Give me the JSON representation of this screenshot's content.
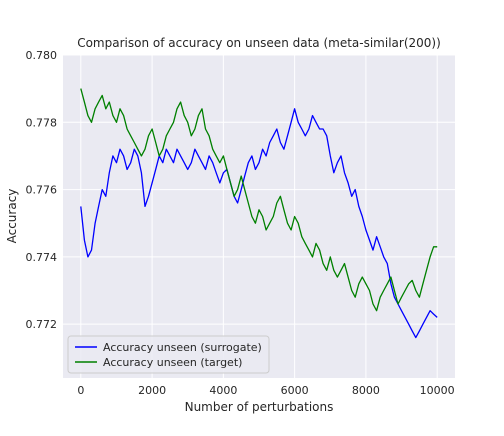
{
  "chart_data": {
    "type": "line",
    "title": "Comparison of accuracy on unseen data (meta-similar(200))",
    "xlabel": "Number of perturbations",
    "ylabel": "Accuracy",
    "xlim": [
      -500,
      10500
    ],
    "ylim": [
      0.7704,
      0.78
    ],
    "x_ticks": [
      0,
      2000,
      4000,
      6000,
      8000,
      10000
    ],
    "x_tick_labels": [
      "0",
      "2000",
      "4000",
      "6000",
      "8000",
      "10000"
    ],
    "y_ticks": [
      0.772,
      0.774,
      0.776,
      0.778,
      0.78
    ],
    "y_tick_labels": [
      "0.772",
      "0.774",
      "0.776",
      "0.778",
      "0.780"
    ],
    "grid": true,
    "legend_position": "lower-left",
    "series": [
      {
        "name": "Accuracy unseen (surrogate)",
        "color": "#0000ff",
        "x": [
          0,
          100,
          200,
          300,
          400,
          500,
          600,
          700,
          800,
          900,
          1000,
          1100,
          1200,
          1300,
          1400,
          1500,
          1600,
          1700,
          1800,
          1900,
          2000,
          2100,
          2200,
          2300,
          2400,
          2500,
          2600,
          2700,
          2800,
          2900,
          3000,
          3100,
          3200,
          3300,
          3400,
          3500,
          3600,
          3700,
          3800,
          3900,
          4000,
          4100,
          4200,
          4300,
          4400,
          4500,
          4600,
          4700,
          4800,
          4900,
          5000,
          5100,
          5200,
          5300,
          5400,
          5500,
          5600,
          5700,
          5800,
          5900,
          6000,
          6100,
          6200,
          6300,
          6400,
          6500,
          6600,
          6700,
          6800,
          6900,
          7000,
          7100,
          7200,
          7300,
          7400,
          7500,
          7600,
          7700,
          7800,
          7900,
          8000,
          8100,
          8200,
          8300,
          8400,
          8500,
          8600,
          8700,
          8800,
          8900,
          9000,
          9100,
          9200,
          9300,
          9400,
          9500,
          9600,
          9700,
          9800,
          9900,
          10000
        ],
        "y": [
          0.7755,
          0.7745,
          0.774,
          0.7742,
          0.775,
          0.7755,
          0.776,
          0.7758,
          0.7765,
          0.777,
          0.7768,
          0.7772,
          0.777,
          0.7766,
          0.7768,
          0.7772,
          0.777,
          0.7765,
          0.7755,
          0.7758,
          0.7762,
          0.7766,
          0.777,
          0.7768,
          0.7772,
          0.777,
          0.7768,
          0.7772,
          0.777,
          0.7768,
          0.7766,
          0.7768,
          0.7772,
          0.777,
          0.7768,
          0.7766,
          0.777,
          0.7768,
          0.7765,
          0.7762,
          0.7765,
          0.7766,
          0.7762,
          0.7758,
          0.7756,
          0.776,
          0.7764,
          0.7768,
          0.777,
          0.7766,
          0.7768,
          0.7772,
          0.777,
          0.7774,
          0.7776,
          0.7778,
          0.7774,
          0.7772,
          0.7776,
          0.778,
          0.7784,
          0.778,
          0.7778,
          0.7776,
          0.7778,
          0.7782,
          0.778,
          0.7778,
          0.7778,
          0.7776,
          0.777,
          0.7765,
          0.7768,
          0.777,
          0.7765,
          0.7762,
          0.7758,
          0.776,
          0.7755,
          0.7752,
          0.7748,
          0.7745,
          0.7742,
          0.7746,
          0.7743,
          0.774,
          0.7738,
          0.7732,
          0.7728,
          0.7726,
          0.7724,
          0.7722,
          0.772,
          0.7718,
          0.7716,
          0.7718,
          0.772,
          0.7722,
          0.7724,
          0.7723,
          0.7722
        ]
      },
      {
        "name": "Accuracy unseen (target)",
        "color": "#008000",
        "x": [
          0,
          100,
          200,
          300,
          400,
          500,
          600,
          700,
          800,
          900,
          1000,
          1100,
          1200,
          1300,
          1400,
          1500,
          1600,
          1700,
          1800,
          1900,
          2000,
          2100,
          2200,
          2300,
          2400,
          2500,
          2600,
          2700,
          2800,
          2900,
          3000,
          3100,
          3200,
          3300,
          3400,
          3500,
          3600,
          3700,
          3800,
          3900,
          4000,
          4100,
          4200,
          4300,
          4400,
          4500,
          4600,
          4700,
          4800,
          4900,
          5000,
          5100,
          5200,
          5300,
          5400,
          5500,
          5600,
          5700,
          5800,
          5900,
          6000,
          6100,
          6200,
          6300,
          6400,
          6500,
          6600,
          6700,
          6800,
          6900,
          7000,
          7100,
          7200,
          7300,
          7400,
          7500,
          7600,
          7700,
          7800,
          7900,
          8000,
          8100,
          8200,
          8300,
          8400,
          8500,
          8600,
          8700,
          8800,
          8900,
          9000,
          9100,
          9200,
          9300,
          9400,
          9500,
          9600,
          9700,
          9800,
          9900,
          10000
        ],
        "y": [
          0.779,
          0.7786,
          0.7782,
          0.778,
          0.7784,
          0.7786,
          0.7788,
          0.7784,
          0.7786,
          0.7782,
          0.778,
          0.7784,
          0.7782,
          0.7778,
          0.7776,
          0.7774,
          0.7772,
          0.777,
          0.7772,
          0.7776,
          0.7778,
          0.7774,
          0.777,
          0.7772,
          0.7776,
          0.7778,
          0.778,
          0.7784,
          0.7786,
          0.7782,
          0.778,
          0.7776,
          0.7778,
          0.7782,
          0.7784,
          0.7778,
          0.7776,
          0.7772,
          0.777,
          0.7768,
          0.777,
          0.7766,
          0.7762,
          0.7758,
          0.776,
          0.7764,
          0.776,
          0.7756,
          0.7752,
          0.775,
          0.7754,
          0.7752,
          0.7748,
          0.775,
          0.7752,
          0.7756,
          0.7758,
          0.7754,
          0.775,
          0.7748,
          0.7752,
          0.775,
          0.7746,
          0.7744,
          0.7742,
          0.774,
          0.7744,
          0.7742,
          0.7738,
          0.7736,
          0.774,
          0.7736,
          0.7734,
          0.7736,
          0.7738,
          0.7734,
          0.773,
          0.7728,
          0.7732,
          0.7734,
          0.7732,
          0.773,
          0.7726,
          0.7724,
          0.7728,
          0.773,
          0.7732,
          0.7734,
          0.773,
          0.7726,
          0.7728,
          0.773,
          0.7732,
          0.7733,
          0.773,
          0.7728,
          0.7732,
          0.7736,
          0.774,
          0.7743,
          0.7743
        ]
      }
    ]
  }
}
